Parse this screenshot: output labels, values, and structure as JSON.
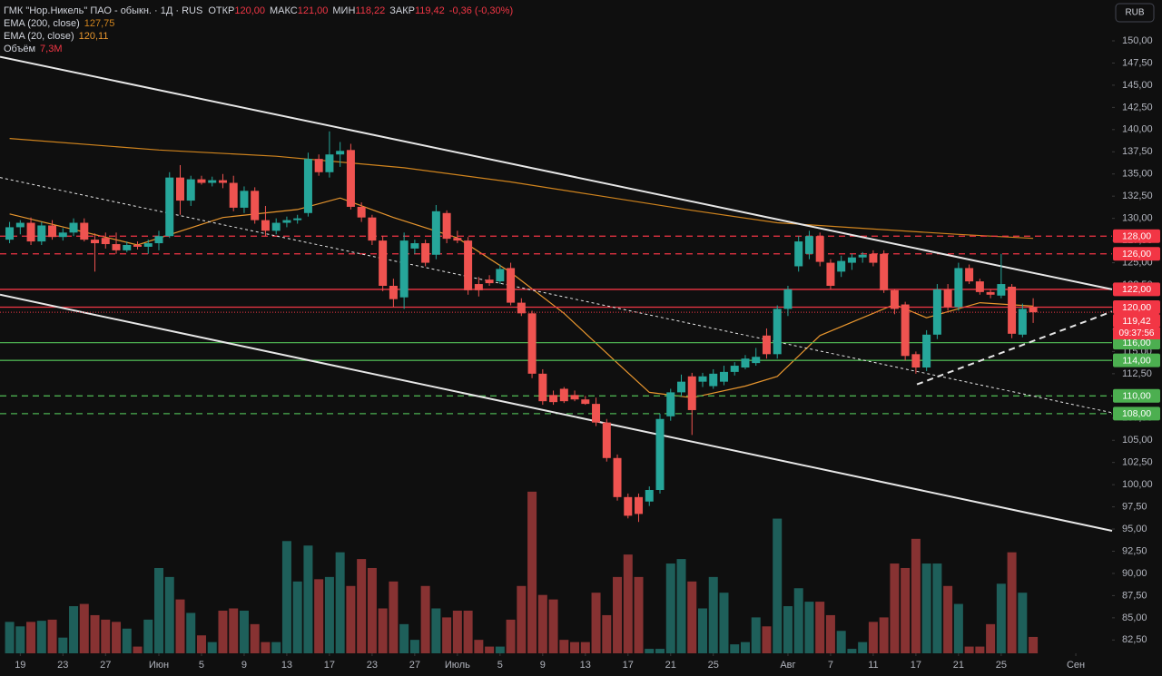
{
  "chart_data": {
    "type": "candlestick",
    "title": "ГМК \"Нор.Никель\" ПАО - обыкн. · 1Д · RUS",
    "ohlc": [
      {
        "label": "ОТКР",
        "value": "120,00"
      },
      {
        "label": "МАКС",
        "value": "121,00"
      },
      {
        "label": "МИН",
        "value": "118,22"
      },
      {
        "label": "ЗАКР",
        "value": "119,42"
      }
    ],
    "change": "-0,36 (-0,30%)",
    "currency": "RUB",
    "up_color": "#26a69a",
    "down_color": "#ef5350",
    "volume_up_color": "#1e5f5a",
    "volume_down_color": "#873232",
    "xlim": [
      -0.9,
      103.4
    ],
    "ylim": [
      81,
      154.6
    ],
    "vlim": [
      0,
      291
    ],
    "grid": false,
    "xticks": [
      {
        "value": 1,
        "label": "19"
      },
      {
        "value": 5,
        "label": "23"
      },
      {
        "value": 9,
        "label": "27"
      },
      {
        "value": 14,
        "label": "Июн"
      },
      {
        "value": 18,
        "label": "5"
      },
      {
        "value": 22,
        "label": "9"
      },
      {
        "value": 26,
        "label": "13"
      },
      {
        "value": 30,
        "label": "17"
      },
      {
        "value": 34,
        "label": "23"
      },
      {
        "value": 38,
        "label": "27"
      },
      {
        "value": 42,
        "label": "Июль"
      },
      {
        "value": 46,
        "label": "5"
      },
      {
        "value": 50,
        "label": "9"
      },
      {
        "value": 54,
        "label": "13"
      },
      {
        "value": 58,
        "label": "17"
      },
      {
        "value": 62,
        "label": "21"
      },
      {
        "value": 66,
        "label": "25"
      },
      {
        "value": 73,
        "label": "Авг"
      },
      {
        "value": 77,
        "label": "7"
      },
      {
        "value": 81,
        "label": "11"
      },
      {
        "value": 85,
        "label": "17"
      },
      {
        "value": 89,
        "label": "21"
      },
      {
        "value": 93,
        "label": "25"
      },
      {
        "value": 100,
        "label": "Сен"
      }
    ],
    "yticks": [
      {
        "value": 82.5,
        "label": "82,50"
      },
      {
        "value": 85,
        "label": "85,00"
      },
      {
        "value": 87.5,
        "label": "87,50"
      },
      {
        "value": 90,
        "label": "90,00"
      },
      {
        "value": 92.5,
        "label": "92,50"
      },
      {
        "value": 95,
        "label": "95,00"
      },
      {
        "value": 97.5,
        "label": "97,50"
      },
      {
        "value": 100,
        "label": "100,00"
      },
      {
        "value": 102.5,
        "label": "102,50"
      },
      {
        "value": 105,
        "label": "105,00"
      },
      {
        "value": 107.5,
        "label": "107,50"
      },
      {
        "value": 110,
        "label": "110,00"
      },
      {
        "value": 112.5,
        "label": "112,50"
      },
      {
        "value": 115,
        "label": "115,00"
      },
      {
        "value": 117.5,
        "label": "117,50"
      },
      {
        "value": 120,
        "label": "120,00"
      },
      {
        "value": 122.5,
        "label": "122,50"
      },
      {
        "value": 125,
        "label": "125,00"
      },
      {
        "value": 127.5,
        "label": "127,50"
      },
      {
        "value": 130,
        "label": "130,00"
      },
      {
        "value": 132.5,
        "label": "132,50"
      },
      {
        "value": 135,
        "label": "135,00"
      },
      {
        "value": 137.5,
        "label": "137,50"
      },
      {
        "value": 140,
        "label": "140,00"
      },
      {
        "value": 142.5,
        "label": "142,50"
      },
      {
        "value": 145,
        "label": "145,00"
      },
      {
        "value": 147.5,
        "label": "147,50"
      },
      {
        "value": 150,
        "label": "150,00"
      }
    ],
    "candles": [
      [
        127.6,
        129.6,
        127.2,
        129.0
      ],
      [
        129.0,
        129.8,
        128.2,
        129.5
      ],
      [
        129.5,
        130.1,
        127.0,
        127.4
      ],
      [
        127.4,
        129.6,
        127.0,
        129.2
      ],
      [
        129.2,
        129.8,
        127.6,
        127.9
      ],
      [
        127.9,
        128.9,
        127.5,
        128.4
      ],
      [
        128.4,
        130.0,
        128.0,
        129.5
      ],
      [
        129.5,
        130.0,
        127.4,
        127.6
      ],
      [
        127.6,
        128.3,
        124.0,
        127.2
      ],
      [
        127.8,
        128.4,
        126.6,
        127.1
      ],
      [
        127.1,
        128.4,
        126.0,
        126.4
      ],
      [
        126.4,
        127.4,
        126.2,
        127.0
      ],
      [
        127.0,
        127.4,
        126.5,
        126.8
      ],
      [
        126.8,
        127.6,
        126.0,
        127.2
      ],
      [
        127.2,
        128.6,
        126.4,
        128.0
      ],
      [
        128.0,
        135.2,
        127.8,
        134.6
      ],
      [
        134.6,
        136.0,
        130.4,
        132.0
      ],
      [
        132.0,
        134.8,
        131.4,
        134.4
      ],
      [
        134.4,
        134.8,
        133.8,
        134.0
      ],
      [
        134.0,
        134.7,
        133.6,
        134.3
      ],
      [
        134.3,
        135.0,
        133.4,
        134.0
      ],
      [
        134.0,
        134.8,
        130.8,
        131.2
      ],
      [
        131.2,
        133.6,
        130.6,
        133.1
      ],
      [
        133.1,
        133.5,
        129.4,
        129.8
      ],
      [
        129.8,
        131.4,
        128.0,
        128.6
      ],
      [
        128.6,
        130.0,
        128.2,
        129.5
      ],
      [
        129.5,
        130.2,
        129.0,
        129.8
      ],
      [
        129.8,
        130.4,
        129.4,
        130.0
      ],
      [
        130.6,
        137.4,
        130.2,
        136.7
      ],
      [
        136.7,
        137.2,
        134.8,
        135.2
      ],
      [
        135.2,
        139.8,
        134.6,
        137.2
      ],
      [
        137.2,
        138.6,
        135.8,
        137.6
      ],
      [
        137.7,
        138.4,
        131.0,
        131.3
      ],
      [
        131.3,
        131.8,
        129.6,
        130.1
      ],
      [
        130.1,
        130.4,
        127.0,
        127.5
      ],
      [
        127.5,
        128.0,
        121.8,
        122.4
      ],
      [
        122.4,
        123.2,
        120.0,
        120.9
      ],
      [
        121.1,
        128.4,
        119.8,
        127.5
      ],
      [
        126.6,
        127.6,
        126.0,
        127.2
      ],
      [
        127.2,
        127.6,
        124.6,
        125.0
      ],
      [
        125.9,
        131.5,
        125.4,
        130.8
      ],
      [
        130.6,
        130.9,
        127.2,
        127.7
      ],
      [
        127.8,
        128.6,
        127.2,
        127.5
      ],
      [
        127.5,
        127.9,
        121.4,
        121.9
      ],
      [
        122.6,
        123.4,
        121.2,
        121.9
      ],
      [
        123.1,
        123.6,
        122.4,
        122.7
      ],
      [
        122.9,
        124.8,
        122.6,
        124.3
      ],
      [
        124.4,
        125.0,
        120.2,
        120.5
      ],
      [
        120.5,
        121.0,
        119.0,
        119.3
      ],
      [
        119.3,
        119.6,
        112.0,
        112.5
      ],
      [
        112.5,
        113.0,
        109.0,
        109.4
      ],
      [
        110.1,
        110.6,
        109.0,
        109.3
      ],
      [
        110.8,
        111.0,
        109.2,
        109.4
      ],
      [
        110.1,
        110.6,
        109.4,
        109.6
      ],
      [
        109.6,
        110.0,
        109.0,
        109.1
      ],
      [
        109.1,
        109.8,
        106.6,
        107.0
      ],
      [
        107.0,
        107.4,
        102.6,
        103.0
      ],
      [
        103.0,
        103.4,
        98.2,
        98.6
      ],
      [
        98.6,
        99.0,
        96.2,
        96.5
      ],
      [
        98.6,
        99.0,
        95.8,
        96.7
      ],
      [
        98.1,
        99.8,
        97.6,
        99.4
      ],
      [
        99.4,
        108.0,
        99.0,
        107.4
      ],
      [
        107.7,
        110.8,
        107.2,
        110.4
      ],
      [
        110.4,
        112.4,
        110.0,
        111.6
      ],
      [
        112.2,
        112.6,
        105.6,
        108.4
      ],
      [
        111.6,
        112.6,
        111.0,
        112.2
      ],
      [
        111.1,
        113.0,
        110.8,
        112.5
      ],
      [
        111.6,
        113.4,
        111.2,
        112.7
      ],
      [
        112.7,
        113.8,
        112.3,
        113.4
      ],
      [
        113.2,
        114.6,
        113.0,
        114.2
      ],
      [
        113.7,
        115.4,
        113.4,
        114.4
      ],
      [
        116.8,
        117.6,
        114.2,
        114.7
      ],
      [
        114.7,
        120.2,
        114.2,
        119.8
      ],
      [
        119.8,
        122.4,
        119.0,
        122.0
      ],
      [
        124.6,
        128.0,
        124.0,
        127.4
      ],
      [
        126.0,
        128.6,
        125.4,
        128.0
      ],
      [
        128.0,
        128.4,
        124.6,
        125.1
      ],
      [
        125.0,
        125.4,
        122.0,
        122.4
      ],
      [
        124.0,
        125.8,
        123.4,
        125.2
      ],
      [
        125.0,
        126.0,
        124.2,
        125.6
      ],
      [
        125.6,
        126.2,
        125.0,
        125.9
      ],
      [
        126.0,
        126.4,
        124.6,
        125.0
      ],
      [
        126.0,
        126.4,
        121.6,
        121.9
      ],
      [
        121.9,
        122.0,
        119.2,
        119.8
      ],
      [
        120.3,
        120.6,
        114.0,
        114.5
      ],
      [
        114.7,
        115.0,
        112.5,
        113.2
      ],
      [
        113.2,
        117.4,
        112.8,
        116.9
      ],
      [
        116.9,
        122.6,
        116.4,
        122.0
      ],
      [
        122.0,
        122.6,
        119.6,
        120.0
      ],
      [
        120.0,
        125.0,
        119.6,
        124.4
      ],
      [
        124.4,
        124.8,
        122.6,
        122.9
      ],
      [
        122.9,
        123.2,
        121.4,
        121.7
      ],
      [
        121.7,
        122.0,
        121.0,
        121.4
      ],
      [
        121.3,
        126.0,
        121.0,
        122.6
      ],
      [
        122.3,
        122.6,
        116.5,
        117.0
      ],
      [
        116.9,
        120.4,
        116.6,
        119.8
      ],
      [
        120.0,
        121.0,
        118.22,
        119.42
      ]
    ],
    "volume_name": "Объём",
    "volume_value_label": "7,3M",
    "volume": [
      14,
      12,
      14,
      14.5,
      15,
      7,
      21,
      22,
      17,
      15,
      14,
      11,
      3,
      15,
      38,
      34,
      24,
      18,
      8,
      5,
      19,
      20,
      19,
      13,
      5,
      5,
      50,
      32,
      48,
      33,
      34,
      45,
      30,
      42,
      38,
      20,
      32,
      13,
      6,
      30,
      20,
      16,
      19,
      19,
      6,
      3,
      3,
      15,
      30,
      72,
      26,
      24,
      6,
      5,
      5,
      27,
      17,
      34,
      44,
      34,
      2,
      2,
      40,
      42,
      32,
      20,
      34,
      27,
      4,
      5,
      16,
      12,
      60,
      21,
      29,
      23,
      23,
      17,
      10,
      2,
      5,
      14,
      16,
      40,
      38,
      51,
      40,
      40,
      30,
      22,
      3,
      3,
      13,
      31,
      45,
      27,
      7.3
    ],
    "indicators": [
      {
        "name": "EMA (200, close)",
        "value_label": "127,75",
        "color": "#d0841e",
        "x": [
          0,
          14,
          25,
          37,
          47,
          55,
          64,
          72,
          81,
          89,
          96
        ],
        "values": [
          139.0,
          137.7,
          137.0,
          135.7,
          134.1,
          132.6,
          130.9,
          129.5,
          128.8,
          128.2,
          127.75
        ]
      },
      {
        "name": "EMA (20, close)",
        "value_label": "120,11",
        "color": "#e8962e",
        "x": [
          0,
          12,
          20,
          27,
          31,
          36,
          42,
          47,
          52,
          57,
          60,
          64,
          69,
          72,
          76,
          81,
          83,
          86,
          91,
          96
        ],
        "values": [
          130.5,
          127.0,
          130.1,
          131.0,
          132.3,
          130.1,
          127.8,
          123.9,
          119.3,
          113.7,
          110.4,
          109.8,
          111.1,
          112.2,
          116.8,
          119.3,
          120.3,
          118.8,
          120.5,
          120.11
        ]
      }
    ],
    "trendlines": [
      {
        "x": [
          -0.9,
          103.4
        ],
        "y": [
          148.2,
          122.0
        ],
        "style": "solid"
      },
      {
        "x": [
          -0.9,
          103.4
        ],
        "y": [
          121.4,
          94.8
        ],
        "style": "solid"
      },
      {
        "x": [
          -0.9,
          103.4
        ],
        "y": [
          134.6,
          108.1
        ],
        "style": "dotted"
      },
      {
        "x": [
          85.1,
          103.4
        ],
        "y": [
          111.3,
          119.5
        ],
        "style": "dashed"
      }
    ],
    "levels": [
      {
        "value": 128,
        "label": "128,00",
        "color": "#f23645",
        "style": "dashed"
      },
      {
        "value": 126,
        "label": "126,00",
        "color": "#f23645",
        "style": "dashed"
      },
      {
        "value": 122,
        "label": "122,00",
        "color": "#f23645",
        "style": "solid"
      },
      {
        "value": 120,
        "label": "120,00",
        "color": "#f23645",
        "style": "solid"
      },
      {
        "value": 116,
        "label": "116,00",
        "color": "#4caf50",
        "style": "solid"
      },
      {
        "value": 114,
        "label": "114,00",
        "color": "#4caf50",
        "style": "solid"
      },
      {
        "value": 110,
        "label": "110,00",
        "color": "#4caf50",
        "style": "dashed"
      },
      {
        "value": 108,
        "label": "108,00",
        "color": "#4caf50",
        "style": "dashed"
      }
    ],
    "current": {
      "value": 119.42,
      "label": "119,42",
      "timer": "09:37:56",
      "color": "#f23645"
    }
  }
}
